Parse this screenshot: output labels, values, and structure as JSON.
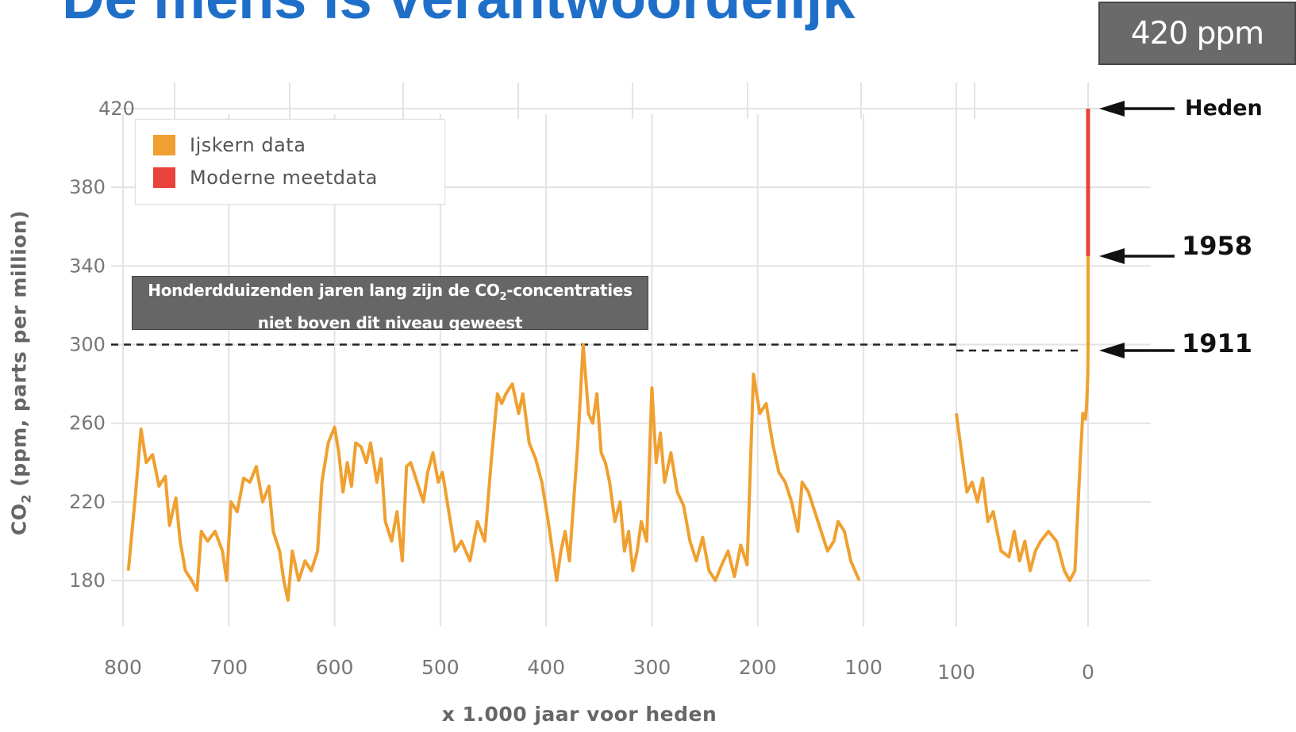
{
  "header": {
    "title": "De mens is verantwoordelijk",
    "badge": "420 ppm"
  },
  "legend": {
    "items": [
      {
        "label": "Ijskern data",
        "color": "#f0a030"
      },
      {
        "label": "Moderne meetdata",
        "color": "#e8423a"
      }
    ]
  },
  "callout": {
    "line1_pre": "Honderdduizenden jaren lang zijn de CO",
    "line1_sub": "2",
    "line1_post": "-concentraties",
    "line2": "niet boven dit niveau geweest"
  },
  "annotations": {
    "heden": "Heden",
    "y1958": "1958",
    "y1911": "1911"
  },
  "axes": {
    "xlabel": "x 1.000 jaar voor heden",
    "ylabel_pre": "CO",
    "ylabel_sub": "2",
    "ylabel_post": " (ppm, parts per million)"
  },
  "chart_data": {
    "type": "line",
    "ylim": [
      160,
      420
    ],
    "yticks": [
      "420",
      "380",
      "340",
      "300",
      "260",
      "220",
      "180"
    ],
    "xticks_main": [
      "800",
      "700",
      "600",
      "500",
      "400",
      "300",
      "200",
      "100"
    ],
    "xticks_recent": [
      "100",
      "0"
    ],
    "threshold": 300,
    "grid": true,
    "legend_position": "top-left",
    "series": [
      {
        "name": "Ijskern data",
        "color": "#f0a030",
        "x_unit": "1000 years before present",
        "points": [
          [
            795,
            185
          ],
          [
            788,
            225
          ],
          [
            783,
            257
          ],
          [
            778,
            240
          ],
          [
            772,
            244
          ],
          [
            766,
            228
          ],
          [
            760,
            233
          ],
          [
            756,
            208
          ],
          [
            750,
            222
          ],
          [
            746,
            200
          ],
          [
            741,
            185
          ],
          [
            735,
            180
          ],
          [
            730,
            175
          ],
          [
            726,
            205
          ],
          [
            720,
            200
          ],
          [
            713,
            205
          ],
          [
            706,
            195
          ],
          [
            702,
            180
          ],
          [
            698,
            220
          ],
          [
            692,
            215
          ],
          [
            686,
            232
          ],
          [
            680,
            230
          ],
          [
            674,
            238
          ],
          [
            668,
            220
          ],
          [
            662,
            228
          ],
          [
            658,
            205
          ],
          [
            652,
            195
          ],
          [
            648,
            180
          ],
          [
            644,
            170
          ],
          [
            640,
            195
          ],
          [
            634,
            180
          ],
          [
            628,
            190
          ],
          [
            622,
            185
          ],
          [
            616,
            195
          ],
          [
            612,
            230
          ],
          [
            606,
            250
          ],
          [
            600,
            258
          ],
          [
            596,
            245
          ],
          [
            592,
            225
          ],
          [
            588,
            240
          ],
          [
            584,
            228
          ],
          [
            580,
            250
          ],
          [
            575,
            248
          ],
          [
            570,
            240
          ],
          [
            566,
            250
          ],
          [
            560,
            230
          ],
          [
            556,
            242
          ],
          [
            552,
            210
          ],
          [
            546,
            200
          ],
          [
            541,
            215
          ],
          [
            536,
            190
          ],
          [
            532,
            238
          ],
          [
            528,
            240
          ],
          [
            522,
            230
          ],
          [
            516,
            220
          ],
          [
            512,
            235
          ],
          [
            507,
            245
          ],
          [
            502,
            230
          ],
          [
            498,
            235
          ],
          [
            492,
            215
          ],
          [
            486,
            195
          ],
          [
            480,
            200
          ],
          [
            472,
            190
          ],
          [
            465,
            210
          ],
          [
            458,
            200
          ],
          [
            452,
            240
          ],
          [
            446,
            275
          ],
          [
            442,
            270
          ],
          [
            438,
            275
          ],
          [
            432,
            280
          ],
          [
            426,
            265
          ],
          [
            422,
            275
          ],
          [
            416,
            250
          ],
          [
            410,
            242
          ],
          [
            404,
            230
          ],
          [
            398,
            210
          ],
          [
            394,
            195
          ],
          [
            390,
            180
          ],
          [
            386,
            195
          ],
          [
            382,
            205
          ],
          [
            378,
            190
          ],
          [
            374,
            220
          ],
          [
            370,
            250
          ],
          [
            365,
            300
          ],
          [
            360,
            265
          ],
          [
            356,
            260
          ],
          [
            352,
            275
          ],
          [
            348,
            245
          ],
          [
            344,
            240
          ],
          [
            340,
            230
          ],
          [
            335,
            210
          ],
          [
            330,
            220
          ],
          [
            326,
            195
          ],
          [
            322,
            205
          ],
          [
            318,
            185
          ],
          [
            314,
            195
          ],
          [
            310,
            210
          ],
          [
            305,
            200
          ],
          [
            300,
            278
          ],
          [
            296,
            240
          ],
          [
            292,
            255
          ],
          [
            288,
            230
          ],
          [
            282,
            245
          ],
          [
            276,
            225
          ],
          [
            270,
            218
          ],
          [
            264,
            200
          ],
          [
            258,
            190
          ],
          [
            252,
            202
          ],
          [
            246,
            185
          ],
          [
            240,
            180
          ],
          [
            234,
            188
          ],
          [
            228,
            195
          ],
          [
            222,
            182
          ],
          [
            216,
            198
          ],
          [
            210,
            188
          ],
          [
            204,
            285
          ],
          [
            198,
            265
          ],
          [
            192,
            270
          ],
          [
            186,
            250
          ],
          [
            180,
            235
          ],
          [
            174,
            230
          ],
          [
            168,
            220
          ],
          [
            162,
            205
          ],
          [
            158,
            230
          ],
          [
            152,
            225
          ],
          [
            146,
            215
          ],
          [
            140,
            205
          ],
          [
            134,
            195
          ],
          [
            128,
            200
          ],
          [
            124,
            210
          ],
          [
            118,
            205
          ],
          [
            112,
            190
          ],
          [
            108,
            185
          ],
          [
            104,
            180
          ]
        ]
      },
      {
        "name": "Ijskern data (recent)",
        "color": "#f0a030",
        "x_unit": "1000 years before present",
        "points": [
          [
            100,
            265
          ],
          [
            96,
            245
          ],
          [
            92,
            225
          ],
          [
            88,
            230
          ],
          [
            84,
            220
          ],
          [
            80,
            232
          ],
          [
            76,
            210
          ],
          [
            72,
            215
          ],
          [
            66,
            195
          ],
          [
            60,
            192
          ],
          [
            56,
            205
          ],
          [
            52,
            190
          ],
          [
            48,
            200
          ],
          [
            44,
            185
          ],
          [
            40,
            195
          ],
          [
            36,
            200
          ],
          [
            30,
            205
          ],
          [
            24,
            200
          ],
          [
            18,
            185
          ],
          [
            14,
            180
          ],
          [
            10,
            185
          ],
          [
            6,
            240
          ],
          [
            4,
            265
          ],
          [
            2,
            262
          ],
          [
            1,
            270
          ],
          [
            0.5,
            280
          ],
          [
            0.2,
            285
          ],
          [
            0.1,
            290
          ],
          [
            0,
            300
          ],
          [
            0,
            345
          ]
        ]
      },
      {
        "name": "Moderne meetdata",
        "color": "#e8423a",
        "x_unit": "1000 years before present",
        "points": [
          [
            0,
            345
          ],
          [
            0,
            420
          ]
        ]
      }
    ],
    "markers": [
      {
        "label": "Heden",
        "value": 420
      },
      {
        "label": "1958",
        "value": 345
      },
      {
        "label": "1911",
        "value": 297
      }
    ]
  }
}
